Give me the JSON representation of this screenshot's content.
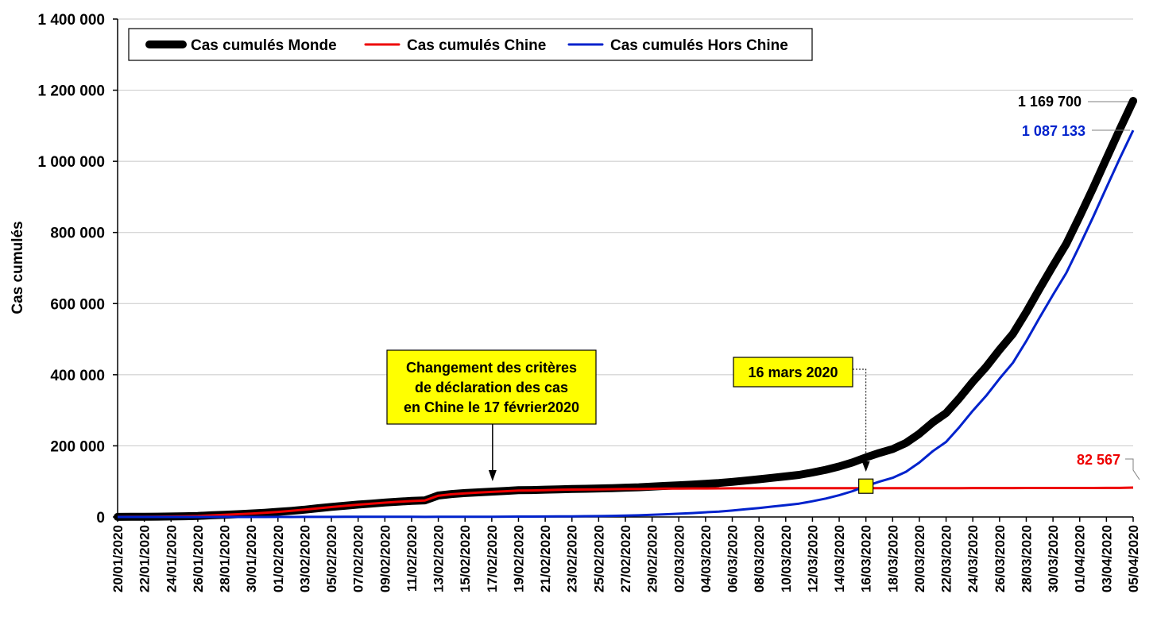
{
  "chart_data": {
    "type": "line",
    "ylabel": "Cas cumulés",
    "ylim": [
      0,
      1400000
    ],
    "yticks": [
      "0",
      "200 000",
      "400 000",
      "600 000",
      "800 000",
      "1 000 000",
      "1 200 000",
      "1 400 000"
    ],
    "grid": true,
    "legend_position": "top-left",
    "x": [
      "20/01/2020",
      "21/01/2020",
      "22/01/2020",
      "23/01/2020",
      "24/01/2020",
      "25/01/2020",
      "26/01/2020",
      "27/01/2020",
      "28/01/2020",
      "29/01/2020",
      "30/01/2020",
      "31/01/2020",
      "01/02/2020",
      "02/02/2020",
      "03/02/2020",
      "04/02/2020",
      "05/02/2020",
      "06/02/2020",
      "07/02/2020",
      "08/02/2020",
      "09/02/2020",
      "10/02/2020",
      "11/02/2020",
      "12/02/2020",
      "13/02/2020",
      "14/02/2020",
      "15/02/2020",
      "16/02/2020",
      "17/02/2020",
      "18/02/2020",
      "19/02/2020",
      "20/02/2020",
      "21/02/2020",
      "22/02/2020",
      "23/02/2020",
      "24/02/2020",
      "25/02/2020",
      "26/02/2020",
      "27/02/2020",
      "28/02/2020",
      "29/02/2020",
      "01/03/2020",
      "02/03/2020",
      "03/03/2020",
      "04/03/2020",
      "05/03/2020",
      "06/03/2020",
      "07/03/2020",
      "08/03/2020",
      "09/03/2020",
      "10/03/2020",
      "11/03/2020",
      "12/03/2020",
      "13/03/2020",
      "14/03/2020",
      "15/03/2020",
      "16/03/2020",
      "17/03/2020",
      "18/03/2020",
      "19/03/2020",
      "20/03/2020",
      "21/03/2020",
      "22/03/2020",
      "23/03/2020",
      "24/03/2020",
      "25/03/2020",
      "26/03/2020",
      "27/03/2020",
      "28/03/2020",
      "29/03/2020",
      "30/03/2020",
      "31/03/2020",
      "01/04/2020",
      "02/04/2020",
      "03/04/2020",
      "04/04/2020",
      "05/04/2020"
    ],
    "xtick_labels": [
      "20/01/2020",
      "22/01/2020",
      "24/01/2020",
      "26/01/2020",
      "28/01/2020",
      "30/01/2020",
      "01/02/2020",
      "03/02/2020",
      "05/02/2020",
      "07/02/2020",
      "09/02/2020",
      "11/02/2020",
      "13/02/2020",
      "15/02/2020",
      "17/02/2020",
      "19/02/2020",
      "21/02/2020",
      "23/02/2020",
      "25/02/2020",
      "27/02/2020",
      "29/02/2020",
      "02/03/2020",
      "04/03/2020",
      "06/03/2020",
      "08/03/2020",
      "10/03/2020",
      "12/03/2020",
      "14/03/2020",
      "16/03/2020",
      "18/03/2020",
      "20/03/2020",
      "22/03/2020",
      "24/03/2020",
      "26/03/2020",
      "28/03/2020",
      "30/03/2020",
      "01/04/2020",
      "03/04/2020",
      "05/04/2020"
    ],
    "series": [
      {
        "name": "Cas cumulés Monde",
        "color": "#000000",
        "values": [
          300,
          440,
          580,
          850,
          1300,
          2000,
          2800,
          4600,
          6100,
          7800,
          9800,
          11900,
          14500,
          17300,
          20600,
          24600,
          28300,
          31500,
          34900,
          37600,
          40600,
          43100,
          45200,
          46600,
          60300,
          64500,
          67100,
          69200,
          71300,
          73300,
          75200,
          75700,
          76800,
          77800,
          78800,
          79300,
          80100,
          81100,
          82300,
          83600,
          85500,
          87400,
          89200,
          91200,
          93400,
          95600,
          98600,
          102200,
          106000,
          110000,
          114100,
          118300,
          125000,
          132700,
          142100,
          153500,
          167500,
          180000,
          191000,
          208000,
          234000,
          266000,
          292000,
          334000,
          380000,
          422000,
          470000,
          515000,
          576000,
          642000,
          706000,
          768000,
          845000,
          925000,
          1008000,
          1090000,
          1169700
        ]
      },
      {
        "name": "Cas cumulés Chine",
        "color": "#ee0000",
        "values": [
          291,
          440,
          571,
          830,
          1287,
          1975,
          2744,
          4515,
          5974,
          7711,
          9692,
          11791,
          14380,
          17205,
          20438,
          24324,
          28018,
          31161,
          34546,
          37198,
          40171,
          42638,
          44653,
          46472,
          59804,
          63851,
          66492,
          68500,
          70548,
          72436,
          74185,
          74576,
          75465,
          76288,
          76936,
          77150,
          77658,
          78064,
          78497,
          78824,
          79251,
          79824,
          80026,
          80151,
          80270,
          80409,
          80552,
          80651,
          80695,
          80735,
          80754,
          80778,
          80793,
          80813,
          80824,
          80844,
          80860,
          80881,
          80894,
          80928,
          80967,
          81008,
          81054,
          81093,
          81171,
          81218,
          81285,
          81340,
          81394,
          81439,
          81470,
          81518,
          81554,
          81589,
          81620,
          81639,
          82567
        ]
      },
      {
        "name": "Cas cumulés Hors Chine",
        "color": "#0022cc",
        "values": [
          9,
          0,
          9,
          20,
          13,
          25,
          56,
          85,
          126,
          89,
          108,
          109,
          120,
          95,
          162,
          276,
          282,
          339,
          354,
          402,
          429,
          462,
          547,
          128,
          496,
          649,
          608,
          700,
          752,
          864,
          1015,
          1124,
          1335,
          1512,
          1864,
          2150,
          2442,
          3036,
          3803,
          4776,
          6249,
          7576,
          9174,
          11049,
          13130,
          15191,
          18048,
          21551,
          25305,
          29265,
          33346,
          37522,
          44207,
          51887,
          61276,
          72656,
          86640,
          99119,
          110106,
          127072,
          153033,
          184992,
          210946,
          252907,
          298829,
          340782,
          388715,
          433660,
          494606,
          560561,
          624530,
          686482,
          763446,
          843411,
          926380,
          1008361,
          1087133
        ]
      }
    ],
    "annotations": [
      {
        "id": "criteres",
        "lines": [
          "Changement des critères",
          "de déclaration des cas",
          "en Chine le 17 février2020"
        ],
        "date": "17/02/2020"
      },
      {
        "id": "mars16",
        "lines": [
          "16 mars 2020"
        ],
        "date": "16/03/2020"
      }
    ],
    "end_labels": [
      {
        "text": "1 169 700",
        "series": 0,
        "color": "#000000"
      },
      {
        "text": "1 087 133",
        "series": 2,
        "color": "#0022cc"
      },
      {
        "text": "82 567",
        "series": 1,
        "color": "#ee0000"
      }
    ]
  },
  "colors": {
    "grid": "#c8c8c8",
    "annotation_fill": "#ffff00",
    "marker_fill": "#ffff00"
  }
}
